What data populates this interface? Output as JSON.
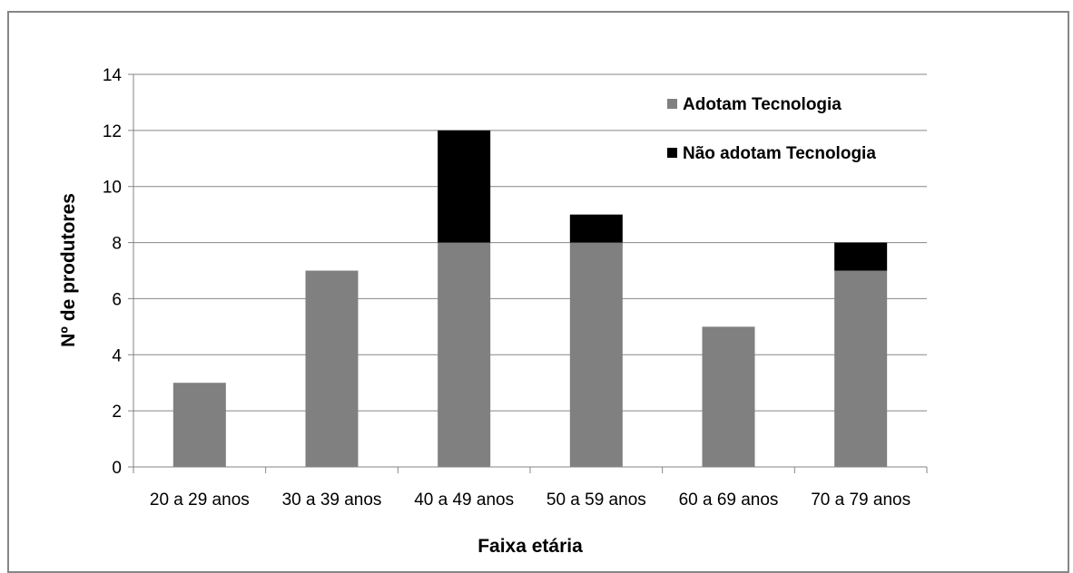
{
  "chart_data": {
    "type": "bar",
    "stacked": true,
    "categories": [
      "20 a 29 anos",
      "30 a 39 anos",
      "40 a 49 anos",
      "50 a 59 anos",
      "60 a 69 anos",
      "70 a 79 anos"
    ],
    "series": [
      {
        "name": "Adotam Tecnologia",
        "values": [
          3,
          7,
          8,
          8,
          5,
          7
        ],
        "color": "#808080"
      },
      {
        "name": "Não adotam Tecnologia",
        "values": [
          0,
          0,
          4,
          1,
          0,
          1
        ],
        "color": "#000000"
      }
    ],
    "xlabel": "Faixa etária",
    "ylabel": "Nº de produtores",
    "ylim": [
      0,
      14
    ],
    "yticks": [
      0,
      2,
      4,
      6,
      8,
      10,
      12,
      14
    ],
    "grid": true,
    "legend_position": "top-right"
  }
}
